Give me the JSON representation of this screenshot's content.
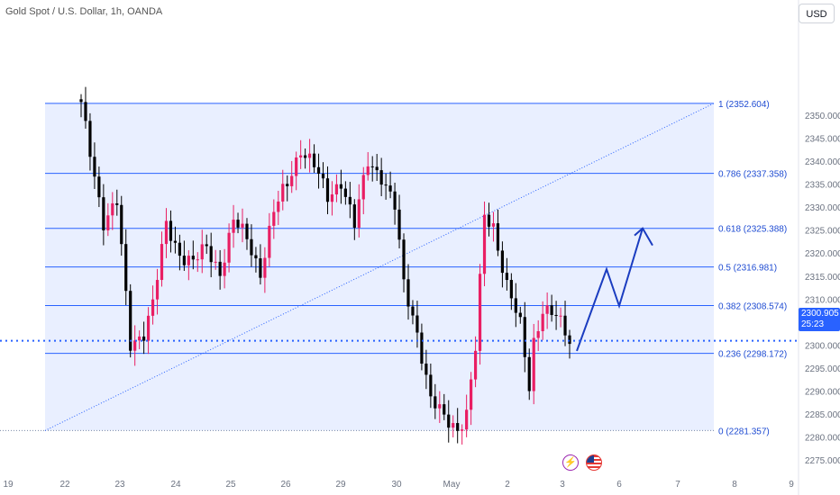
{
  "header": {
    "title": "Gold Spot / U.S. Dollar, 1h, OANDA"
  },
  "currency_button": {
    "label": "USD"
  },
  "last_price": {
    "value": "2300.905",
    "countdown": "25:23"
  },
  "events": [
    {
      "icon": "lightning-bolt-icon"
    },
    {
      "icon": "us-flag-icon"
    }
  ],
  "chart_data": {
    "type": "candlestick",
    "y_axis": {
      "ticks": [
        2275,
        2280,
        2285,
        2290,
        2295,
        2300,
        2305,
        2310,
        2315,
        2320,
        2325,
        2330,
        2335,
        2340,
        2345,
        2350
      ],
      "tick_labels": [
        "2275.000",
        "2280.000",
        "2285.000",
        "2290.000",
        "2295.000",
        "2300.000",
        "2305.000",
        "2310.000",
        "2315.000",
        "2320.000",
        "2325.000",
        "2330.000",
        "2335.000",
        "2340.000",
        "2345.000",
        "2350.000"
      ],
      "range": [
        2272,
        2358
      ]
    },
    "x_axis": {
      "tick_labels": [
        "19",
        "22",
        "23",
        "24",
        "25",
        "26",
        "29",
        "30",
        "May",
        "2",
        "3",
        "6",
        "7",
        "8",
        "9"
      ]
    },
    "fibonacci": [
      {
        "ratio": "1",
        "price": 2352.604,
        "label": "1 (2352.604)"
      },
      {
        "ratio": "0.786",
        "price": 2337.358,
        "label": "0.786 (2337.358)"
      },
      {
        "ratio": "0.618",
        "price": 2325.388,
        "label": "0.618 (2325.388)"
      },
      {
        "ratio": "0.5",
        "price": 2316.981,
        "label": "0.5 (2316.981)"
      },
      {
        "ratio": "0.382",
        "price": 2308.574,
        "label": "0.382 (2308.574)"
      },
      {
        "ratio": "0.236",
        "price": 2298.172,
        "label": "0.236 (2298.172)"
      },
      {
        "ratio": "0",
        "price": 2281.357,
        "label": "0 (2281.357)"
      }
    ],
    "candle_anchors": [
      [
        0,
        2352
      ],
      [
        2,
        2342
      ],
      [
        5,
        2327
      ],
      [
        8,
        2331
      ],
      [
        11,
        2300
      ],
      [
        14,
        2303
      ],
      [
        16,
        2309
      ],
      [
        19,
        2326
      ],
      [
        22,
        2320
      ],
      [
        25,
        2318
      ],
      [
        28,
        2321
      ],
      [
        31,
        2316
      ],
      [
        34,
        2327
      ],
      [
        37,
        2323
      ],
      [
        40,
        2316
      ],
      [
        43,
        2329
      ],
      [
        46,
        2335
      ],
      [
        49,
        2343
      ],
      [
        52,
        2339
      ],
      [
        55,
        2332
      ],
      [
        58,
        2336
      ],
      [
        61,
        2326
      ],
      [
        64,
        2340
      ],
      [
        67,
        2337
      ],
      [
        70,
        2330
      ],
      [
        72,
        2313
      ],
      [
        75,
        2303
      ],
      [
        78,
        2288
      ],
      [
        81,
        2284
      ],
      [
        84,
        2282
      ],
      [
        86,
        2285
      ],
      [
        88,
        2299
      ],
      [
        90,
        2328
      ],
      [
        92,
        2326
      ],
      [
        95,
        2313
      ],
      [
        98,
        2304
      ],
      [
        100,
        2291
      ],
      [
        101,
        2301
      ],
      [
        103,
        2308
      ],
      [
        106,
        2306
      ],
      [
        109,
        2301
      ]
    ],
    "projection_path": [
      2298.7,
      2316.5,
      2308.5,
      2325.4
    ],
    "current_price": 2300.905,
    "colors": {
      "up": "#e91e63",
      "down": "#000000",
      "fib_line": "#2962ff",
      "fib_fill": "#2962ff",
      "projection": "#1a3cc0"
    }
  }
}
